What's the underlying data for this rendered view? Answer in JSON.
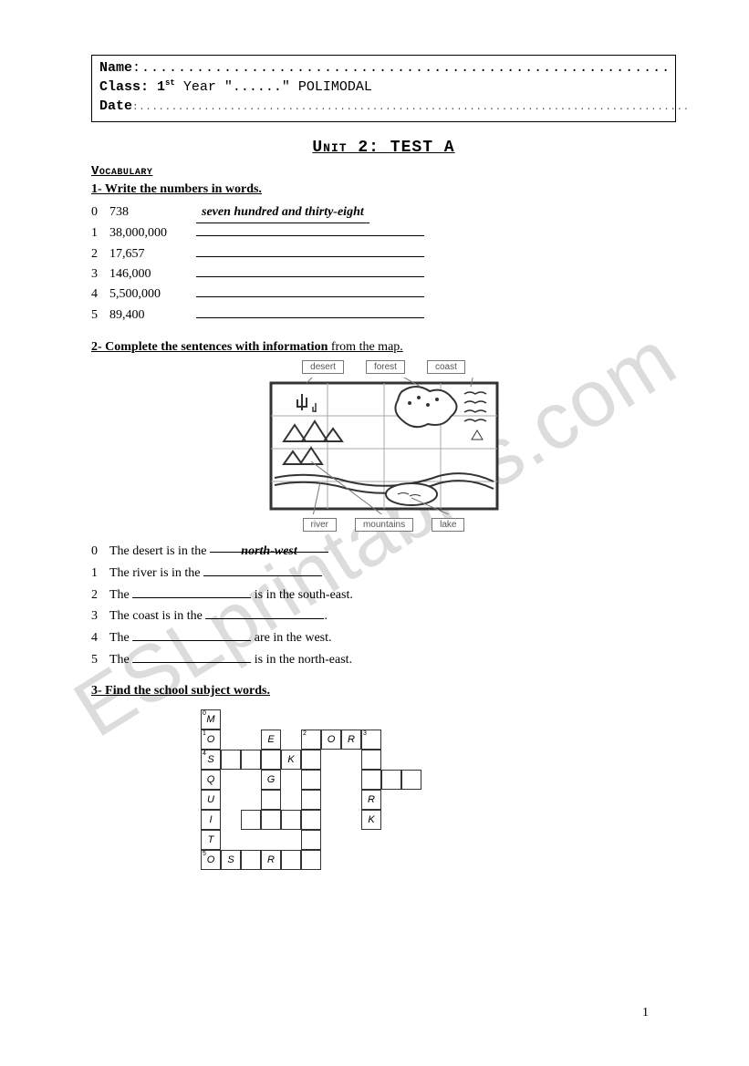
{
  "watermark": "ESLprintables.com",
  "header": {
    "name_label": "Name",
    "name_dots": ":..........................................................",
    "class_label": "Class",
    "class_text": ": 1",
    "class_sup": "st",
    "class_rest": " Year \"......\" POLIMODAL",
    "date_label": "Date",
    "date_dots": ":....................................................................................."
  },
  "unit_title": "Unit 2: TEST A",
  "vocab_label": "Vocabulary",
  "q1": {
    "instr": "1- Write the numbers in words.",
    "rows": [
      {
        "idx": "0",
        "val": "738",
        "ans": "seven hundred and thirty-eight"
      },
      {
        "idx": "1",
        "val": "38,000,000",
        "ans": ""
      },
      {
        "idx": "2",
        "val": "17,657",
        "ans": ""
      },
      {
        "idx": "3",
        "val": "146,000",
        "ans": ""
      },
      {
        "idx": "4",
        "val": "5,500,000",
        "ans": ""
      },
      {
        "idx": "5",
        "val": "89,400",
        "ans": ""
      }
    ]
  },
  "q2": {
    "instr_bold": "2- Complete the sentences with information",
    "instr_plain": " from the map.",
    "labels_top": [
      "desert",
      "forest",
      "coast"
    ],
    "labels_bottom": [
      "river",
      "mountains",
      "lake"
    ],
    "sentences": [
      {
        "idx": "0",
        "pre": "The desert is in the ",
        "blank": "north-west",
        "post": ""
      },
      {
        "idx": "1",
        "pre": "The river is in the ",
        "blank": "",
        "post": ""
      },
      {
        "idx": "2",
        "pre": "The ",
        "blank": "",
        "post": " is in the south-east."
      },
      {
        "idx": "3",
        "pre": "The coast is in the ",
        "blank": "",
        "post": "."
      },
      {
        "idx": "4",
        "pre": "The ",
        "blank": "",
        "post": " are in the west."
      },
      {
        "idx": "5",
        "pre": "The ",
        "blank": "",
        "post": " is in the north-east."
      }
    ]
  },
  "q3": {
    "instr": "3- Find the school subject words.",
    "grid_cols": 11,
    "cells": [
      {
        "r": 0,
        "c": 0,
        "t": "M",
        "n": "0"
      },
      {
        "r": 1,
        "c": 0,
        "t": "O",
        "n": "1"
      },
      {
        "r": 1,
        "c": 3,
        "t": "E"
      },
      {
        "r": 1,
        "c": 5,
        "t": "",
        "n": "2"
      },
      {
        "r": 1,
        "c": 6,
        "t": "O"
      },
      {
        "r": 1,
        "c": 7,
        "t": "R"
      },
      {
        "r": 1,
        "c": 8,
        "t": "",
        "n": "3"
      },
      {
        "r": 2,
        "c": 0,
        "t": "S",
        "n": "4"
      },
      {
        "r": 2,
        "c": 1,
        "t": ""
      },
      {
        "r": 2,
        "c": 2,
        "t": ""
      },
      {
        "r": 2,
        "c": 3,
        "t": ""
      },
      {
        "r": 2,
        "c": 4,
        "t": "K"
      },
      {
        "r": 2,
        "c": 5,
        "t": ""
      },
      {
        "r": 2,
        "c": 8,
        "t": ""
      },
      {
        "r": 3,
        "c": 0,
        "t": "Q"
      },
      {
        "r": 3,
        "c": 3,
        "t": "G"
      },
      {
        "r": 3,
        "c": 5,
        "t": ""
      },
      {
        "r": 3,
        "c": 8,
        "t": ""
      },
      {
        "r": 3,
        "c": 9,
        "t": ""
      },
      {
        "r": 3,
        "c": 10,
        "t": ""
      },
      {
        "r": 4,
        "c": 0,
        "t": "U"
      },
      {
        "r": 4,
        "c": 3,
        "t": ""
      },
      {
        "r": 4,
        "c": 5,
        "t": ""
      },
      {
        "r": 4,
        "c": 8,
        "t": "R"
      },
      {
        "r": 5,
        "c": 0,
        "t": "I"
      },
      {
        "r": 5,
        "c": 2,
        "t": ""
      },
      {
        "r": 5,
        "c": 3,
        "t": ""
      },
      {
        "r": 5,
        "c": 4,
        "t": ""
      },
      {
        "r": 5,
        "c": 5,
        "t": ""
      },
      {
        "r": 5,
        "c": 8,
        "t": "K"
      },
      {
        "r": 6,
        "c": 0,
        "t": "T"
      },
      {
        "r": 6,
        "c": 5,
        "t": ""
      },
      {
        "r": 7,
        "c": 0,
        "t": "O",
        "n": "5"
      },
      {
        "r": 7,
        "c": 1,
        "t": "S"
      },
      {
        "r": 7,
        "c": 2,
        "t": ""
      },
      {
        "r": 7,
        "c": 3,
        "t": "R"
      },
      {
        "r": 7,
        "c": 4,
        "t": ""
      },
      {
        "r": 7,
        "c": 5,
        "t": ""
      }
    ]
  },
  "page_number": "1"
}
